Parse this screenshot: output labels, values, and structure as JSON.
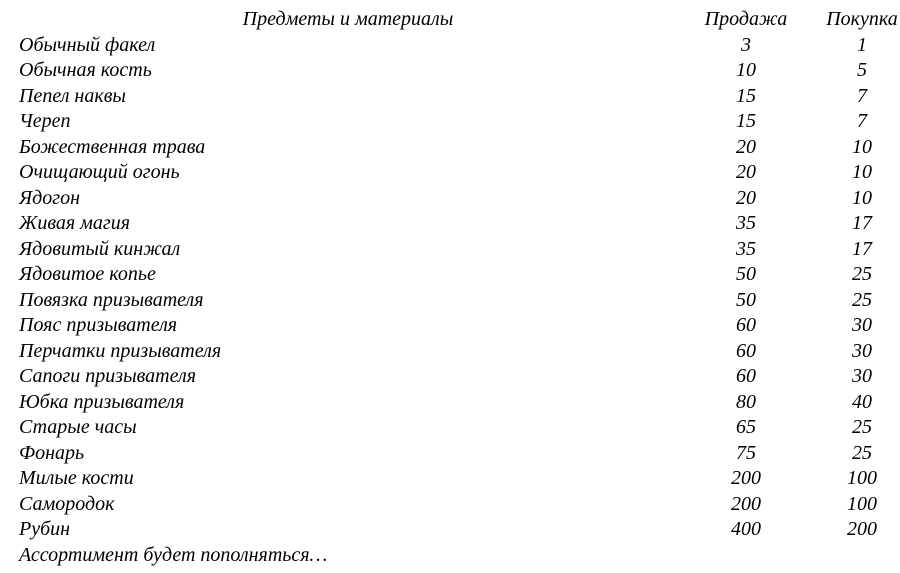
{
  "header": {
    "items": "Предметы и материалы",
    "sell": "Продажа",
    "buy": "Покупка"
  },
  "rows": [
    {
      "name": "Обычный факел",
      "sell": "3",
      "buy": "1"
    },
    {
      "name": "Обычная кость",
      "sell": "10",
      "buy": "5"
    },
    {
      "name": "Пепел наквы",
      "sell": "15",
      "buy": "7"
    },
    {
      "name": "Череп",
      "sell": "15",
      "buy": "7"
    },
    {
      "name": "Божественная трава",
      "sell": "20",
      "buy": "10"
    },
    {
      "name": "Очищающий огонь",
      "sell": "20",
      "buy": "10"
    },
    {
      "name": "Ядогон",
      "sell": "20",
      "buy": "10"
    },
    {
      "name": "Живая магия",
      "sell": "35",
      "buy": "17"
    },
    {
      "name": "Ядовитый кинжал",
      "sell": "35",
      "buy": "17"
    },
    {
      "name": "Ядовитое копье",
      "sell": "50",
      "buy": "25"
    },
    {
      "name": "Повязка призывателя",
      "sell": "50",
      "buy": "25"
    },
    {
      "name": "Пояс призывателя",
      "sell": "60",
      "buy": "30"
    },
    {
      "name": "Перчатки призывателя",
      "sell": "60",
      "buy": "30"
    },
    {
      "name": "Сапоги призывателя",
      "sell": "60",
      "buy": "30"
    },
    {
      "name": "Юбка призывателя",
      "sell": "80",
      "buy": "40"
    },
    {
      "name": "Старые часы",
      "sell": "65",
      "buy": "25"
    },
    {
      "name": "Фонарь",
      "sell": "75",
      "buy": "25"
    },
    {
      "name": "Милые кости",
      "sell": "200",
      "buy": "100"
    },
    {
      "name": "Самородок",
      "sell": "200",
      "buy": "100"
    },
    {
      "name": "Рубин",
      "sell": "400",
      "buy": "200"
    }
  ],
  "footer": "Ассортимент будет пополняться…"
}
